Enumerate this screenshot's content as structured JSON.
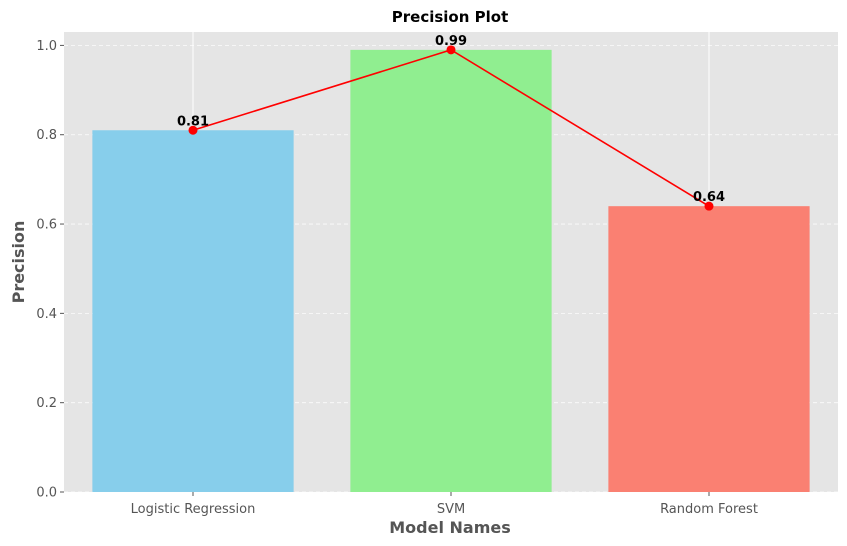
{
  "chart_data": {
    "type": "bar",
    "title": "Precision Plot",
    "xlabel": "Model Names",
    "ylabel": "Precision",
    "categories": [
      "Logistic Regression",
      "SVM",
      "Random Forest"
    ],
    "values": [
      0.81,
      0.99,
      0.64
    ],
    "value_labels": [
      "0.81",
      "0.99",
      "0.64"
    ],
    "bar_colors": [
      "#87ceeb",
      "#90ee90",
      "#fa8072"
    ],
    "line_overlay": {
      "color": "#ff0000",
      "marker": "circle"
    },
    "ylim": [
      0,
      1.03
    ],
    "yticks": [
      0.0,
      0.2,
      0.4,
      0.6,
      0.8,
      1.0
    ],
    "ytick_labels": [
      "0.0",
      "0.2",
      "0.4",
      "0.6",
      "0.8",
      "1.0"
    ],
    "grid": true,
    "background_color": "#e5e5e5"
  }
}
